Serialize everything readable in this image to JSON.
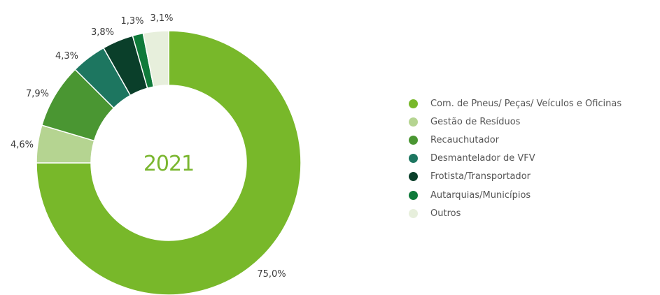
{
  "chart_data": {
    "type": "pie",
    "center_label": "2021",
    "legend_position": "right",
    "slices": [
      {
        "label": "Com. de Pneus/ Peças/ Veículos e Oficinas",
        "value": 75.0,
        "value_label": "75,0%",
        "color": "#78b82a"
      },
      {
        "label": "Gestão de Resíduos",
        "value": 4.6,
        "value_label": "4,6%",
        "color": "#b5d491"
      },
      {
        "label": "Recauchutador",
        "value": 7.9,
        "value_label": "7,9%",
        "color": "#4a9632"
      },
      {
        "label": "Desmantelador de VFV",
        "value": 4.3,
        "value_label": "4,3%",
        "color": "#1d7660"
      },
      {
        "label": "Frotista/Transportador",
        "value": 3.8,
        "value_label": "3,8%",
        "color": "#0a3f2a"
      },
      {
        "label": "Autarquias/Municípios",
        "value": 1.3,
        "value_label": "1,3%",
        "color": "#0f7a3a"
      },
      {
        "label": "Outros",
        "value": 3.1,
        "value_label": "3,1%",
        "color": "#e7efdc"
      }
    ]
  }
}
